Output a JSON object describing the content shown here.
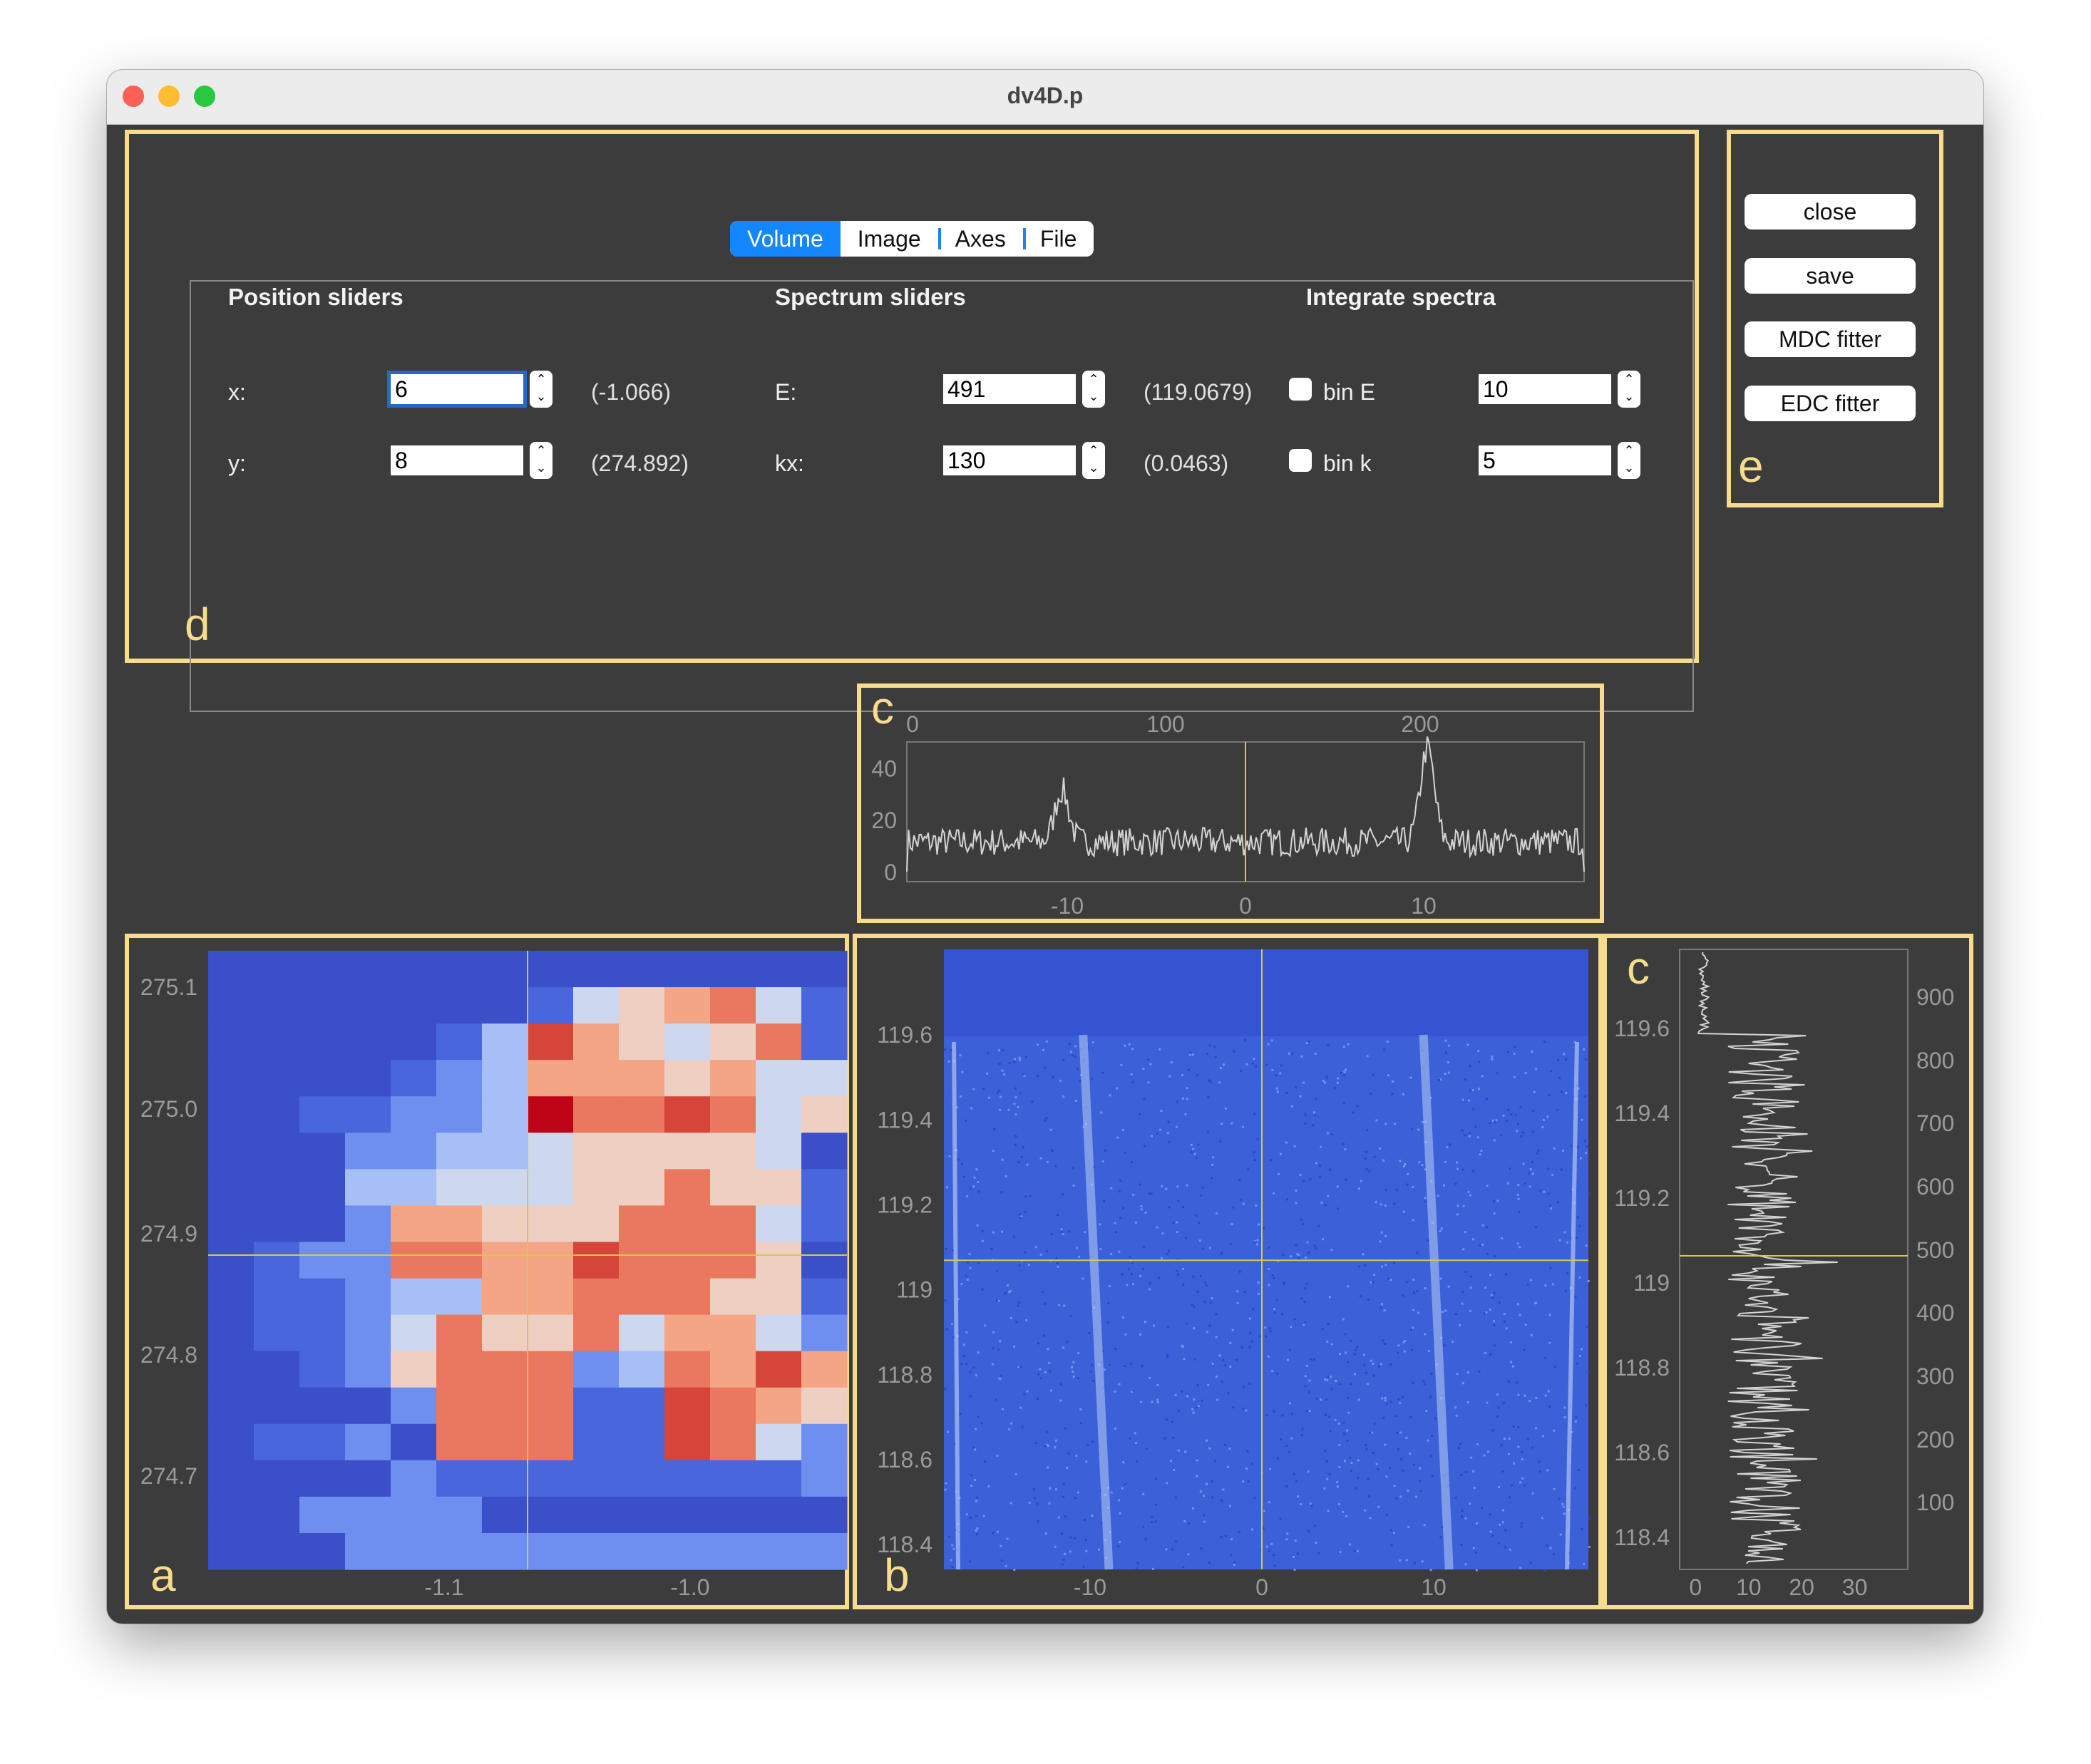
{
  "window": {
    "title": "dv4D.p"
  },
  "tabs": [
    {
      "label": "Volume",
      "active": true
    },
    {
      "label": "Image",
      "active": false
    },
    {
      "label": "Axes",
      "active": false
    },
    {
      "label": "File",
      "active": false
    }
  ],
  "panel_labels": {
    "a": "a",
    "b": "b",
    "c": "c",
    "d": "d",
    "e": "e"
  },
  "position_sliders": {
    "header": "Position sliders",
    "x": {
      "label": "x:",
      "value": "6",
      "readout": "(-1.066)"
    },
    "y": {
      "label": "y:",
      "value": "8",
      "readout": "(274.892)"
    }
  },
  "spectrum_sliders": {
    "header": "Spectrum sliders",
    "E": {
      "label": "E:",
      "value": "491",
      "readout": "(119.0679)"
    },
    "kx": {
      "label": "kx:",
      "value": "130",
      "readout": "(0.0463)"
    }
  },
  "integrate_spectra": {
    "header": "Integrate spectra",
    "binE": {
      "label": "bin E",
      "checked": false,
      "value": "10"
    },
    "bink": {
      "label": "bin k",
      "checked": false,
      "value": "5"
    }
  },
  "buttons": {
    "close": "close",
    "save": "save",
    "mdc": "MDC fitter",
    "edc": "EDC fitter"
  },
  "colors": {
    "highlight": "#f6dc8c",
    "accent": "#1487ff",
    "cursor": "#d8c84a",
    "background": "#3c3c3c"
  },
  "chart_data": [
    {
      "id": "mdc",
      "type": "line",
      "top_axis_ticks": [
        "0",
        "100",
        "200"
      ],
      "bottom_axis_ticks": [
        "-10",
        "0",
        "10"
      ],
      "y_ticks": [
        "40",
        "20",
        "0"
      ],
      "ylim": [
        0,
        50
      ],
      "xlim": [
        -19,
        19
      ],
      "cursor_x": 0,
      "peaks": [
        {
          "x": 10.2,
          "y": 44
        },
        {
          "x": -10.3,
          "y": 28
        }
      ]
    },
    {
      "id": "real_space_map",
      "type": "heatmap",
      "x_ticks": [
        "-1.1",
        "-1.0"
      ],
      "y_ticks": [
        "275.1",
        "275.0",
        "274.9",
        "274.8",
        "274.7"
      ],
      "cursor": {
        "x": -1.066,
        "y": 274.892
      }
    },
    {
      "id": "energy_momentum",
      "type": "heatmap",
      "x_ticks": [
        "-10",
        "0",
        "10"
      ],
      "y_ticks": [
        "119.6",
        "119.4",
        "119.2",
        "119",
        "118.8",
        "118.6",
        "118.4"
      ],
      "xlim": [
        -18.5,
        19
      ],
      "ylim": [
        118.34,
        119.8
      ],
      "cursor": {
        "x": 0,
        "y": 119.068
      },
      "bands": [
        {
          "x_top": -10.4,
          "x_bottom": -8.9
        },
        {
          "x_top": 9.4,
          "x_bottom": 10.9
        }
      ]
    },
    {
      "id": "edc",
      "type": "line",
      "x_ticks": [
        "0",
        "10",
        "20",
        "30"
      ],
      "left_ticks": [
        "119.6",
        "119.4",
        "119.2",
        "119",
        "118.8",
        "118.6",
        "118.4"
      ],
      "right_ticks": [
        "900",
        "800",
        "700",
        "600",
        "500",
        "400",
        "300",
        "200",
        "100"
      ],
      "xlim": [
        -3,
        40
      ],
      "cursor_index": 491
    }
  ]
}
